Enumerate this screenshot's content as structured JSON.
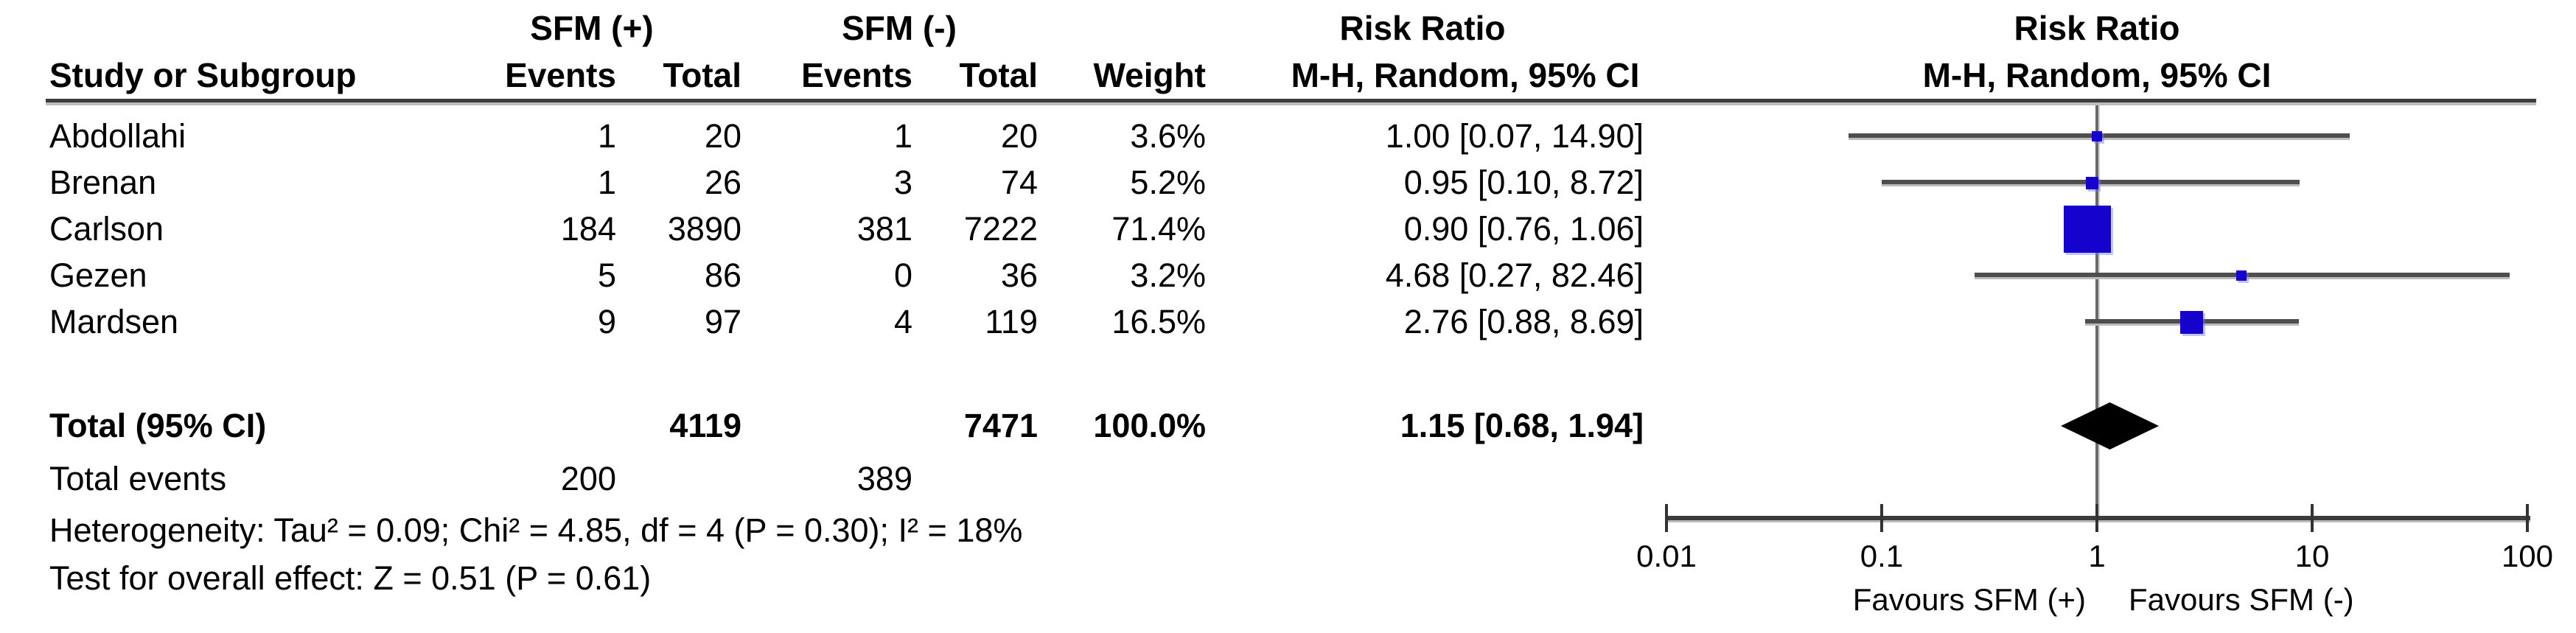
{
  "chart_data": {
    "type": "forest_plot",
    "effect_measure": "Risk Ratio",
    "model": "M-H, Random, 95% CI",
    "scale": "log",
    "group1_label": "SFM (+)",
    "group2_label": "SFM (-)",
    "headers": {
      "study": "Study or Subgroup",
      "events": "Events",
      "total": "Total",
      "weight": "Weight",
      "risk_ratio": "Risk Ratio",
      "mh_random": "M-H, Random, 95% CI"
    },
    "studies": [
      {
        "name": "Abdollahi",
        "events1": "1",
        "total1": "20",
        "events2": "1",
        "total2": "20",
        "weight": "3.6%",
        "weight_value": 3.6,
        "rr": 1.0,
        "ci_low": 0.07,
        "ci_high": 14.9,
        "rr_text": "1.00 [0.07, 14.90]"
      },
      {
        "name": "Brenan",
        "events1": "1",
        "total1": "26",
        "events2": "3",
        "total2": "74",
        "weight": "5.2%",
        "weight_value": 5.2,
        "rr": 0.95,
        "ci_low": 0.1,
        "ci_high": 8.72,
        "rr_text": "0.95 [0.10, 8.72]"
      },
      {
        "name": "Carlson",
        "events1": "184",
        "total1": "3890",
        "events2": "381",
        "total2": "7222",
        "weight": "71.4%",
        "weight_value": 71.4,
        "rr": 0.9,
        "ci_low": 0.76,
        "ci_high": 1.06,
        "rr_text": "0.90 [0.76, 1.06]"
      },
      {
        "name": "Gezen",
        "events1": "5",
        "total1": "86",
        "events2": "0",
        "total2": "36",
        "weight": "3.2%",
        "weight_value": 3.2,
        "rr": 4.68,
        "ci_low": 0.27,
        "ci_high": 82.46,
        "rr_text": "4.68 [0.27, 82.46]"
      },
      {
        "name": "Mardsen",
        "events1": "9",
        "total1": "97",
        "events2": "4",
        "total2": "119",
        "weight": "16.5%",
        "weight_value": 16.5,
        "rr": 2.76,
        "ci_low": 0.88,
        "ci_high": 8.69,
        "rr_text": "2.76 [0.88, 8.69]"
      }
    ],
    "total": {
      "label": "Total (95% CI)",
      "total1": "4119",
      "total2": "7471",
      "weight": "100.0%",
      "rr": 1.15,
      "ci_low": 0.68,
      "ci_high": 1.94,
      "rr_text": "1.15 [0.68, 1.94]"
    },
    "total_events": {
      "label": "Total events",
      "events1": "200",
      "events2": "389"
    },
    "heterogeneity": "Heterogeneity: Tau² = 0.09; Chi² = 4.85, df = 4 (P = 0.30); I² = 18%",
    "overall_effect": "Test for overall effect: Z = 0.51 (P = 0.61)",
    "axis": {
      "min": 0.01,
      "max": 100,
      "ticks": [
        0.01,
        0.1,
        1,
        10,
        100
      ],
      "tick_labels": [
        "0.01",
        "0.1",
        "1",
        "10",
        "100"
      ]
    },
    "favours_left": "Favours SFM (+)",
    "favours_right": "Favours SFM (-)",
    "colors": {
      "marker_blue": "#1502cd",
      "diamond_black": "#000000",
      "ci_line_gray": "#4e4e4e",
      "axis_gray": "#3c3c3c"
    }
  }
}
